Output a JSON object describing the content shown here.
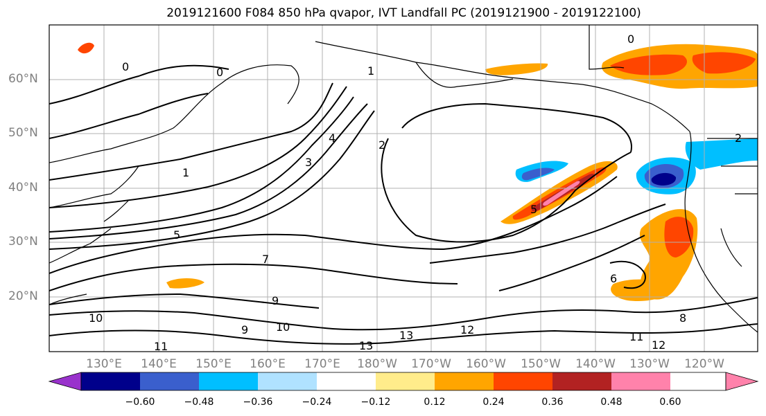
{
  "title": "2019121600 F084 850 hPa qvapor, IVT Landfall PC (2019121900 - 2019122100)",
  "map": {
    "lat_labels": [
      "60°N",
      "50°N",
      "40°N",
      "30°N",
      "20°N"
    ],
    "lon_labels": [
      "130°E",
      "140°E",
      "150°E",
      "160°E",
      "170°E",
      "180°W",
      "170°W",
      "160°W",
      "150°W",
      "140°W",
      "130°W",
      "120°W"
    ],
    "contour_labels": [
      "0",
      "0",
      "0",
      "1",
      "1",
      "2",
      "2",
      "3",
      "4",
      "5",
      "5",
      "6",
      "7",
      "8",
      "9",
      "9",
      "10",
      "10",
      "11",
      "11",
      "12",
      "12",
      "13",
      "13"
    ],
    "field": "850 hPa qvapor",
    "overlay": "IVT Landfall PC"
  },
  "colorbar": {
    "colors": [
      "#9932cc",
      "#00008b",
      "#3a5fcd",
      "#00bfff",
      "#b0e2ff",
      "#ffffff",
      "#ffec8b",
      "#ffa500",
      "#ff4500",
      "#b22222",
      "#ff82ab"
    ],
    "tick_labels": [
      "−0.60",
      "−0.48",
      "−0.36",
      "−0.24",
      "−0.12",
      "0.12",
      "0.24",
      "0.36",
      "0.48",
      "0.60"
    ]
  }
}
